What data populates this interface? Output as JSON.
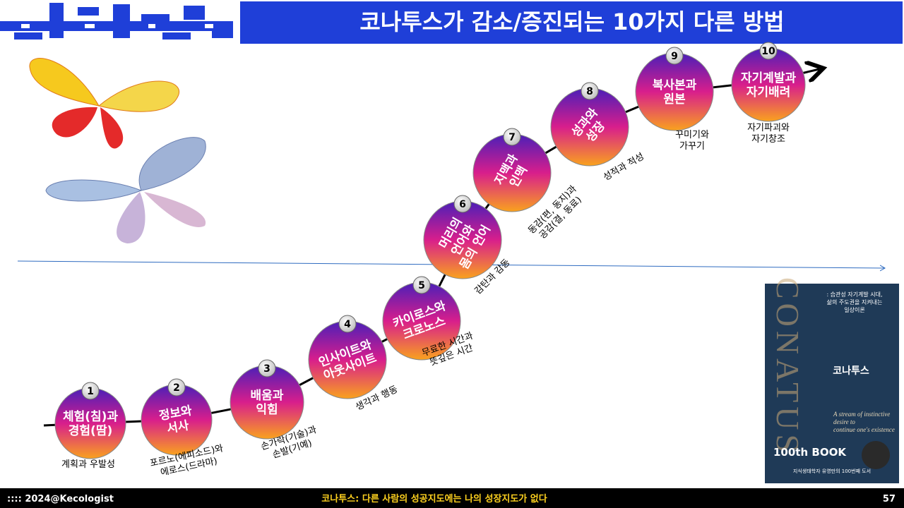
{
  "header": {
    "title": "코나투스가 감소/증진되는 10가지 다른 방법"
  },
  "nodes": [
    {
      "number": "1",
      "label": [
        "체험(침)과",
        "경험(땀)"
      ],
      "caption": [
        "계획과 우발성"
      ]
    },
    {
      "number": "2",
      "label": [
        "정보와",
        "서사"
      ],
      "caption": [
        "포르노(에피소드)와",
        "에로스(드라마)"
      ]
    },
    {
      "number": "3",
      "label": [
        "배움과",
        "익힘"
      ],
      "caption": [
        "손가락(기술)과",
        "손발(기예)"
      ]
    },
    {
      "number": "4",
      "label": [
        "인사이트와",
        "아웃사이트"
      ],
      "caption": [
        "생각과 행동"
      ]
    },
    {
      "number": "5",
      "label": [
        "카이로스와",
        "크로노스"
      ],
      "caption": [
        "무료한 시간과",
        "뜻깊은 시간"
      ]
    },
    {
      "number": "6",
      "label": [
        "머리의",
        "언어와",
        "몸의 언어"
      ],
      "caption": [
        "감탄과 감동"
      ]
    },
    {
      "number": "7",
      "label": [
        "지맥과",
        "인맥"
      ],
      "caption": [
        "동감(편, 동지)과",
        "공감(결, 동료)"
      ]
    },
    {
      "number": "8",
      "label": [
        "성과와",
        "성장"
      ],
      "caption": [
        "성적과 적성"
      ]
    },
    {
      "number": "9",
      "label": [
        "복사본과",
        "원본"
      ],
      "caption": [
        "꾸미기와",
        "가꾸기"
      ]
    },
    {
      "number": "10",
      "label": [
        "자기계발과",
        "자기배려"
      ],
      "caption": [
        "자기파괴와",
        "자기창조"
      ]
    }
  ],
  "book": {
    "tagline": [
      ": 습관성 자기계발 시대,",
      "삶의 주도권을 지켜내는",
      "일상이론"
    ],
    "letters": "CONATUS",
    "title": "코나투스",
    "subtitle": [
      "A stream of instinctive",
      "desire to",
      "continue one's existence"
    ],
    "series": "100th BOOK",
    "note": "지식생태학자 유영만의 100번째 도서"
  },
  "footer": {
    "left": ":::: 2024@Kecologist",
    "center": "코나투스: 다른 사람의 성공지도에는 나의 성장지도가 없다",
    "page": "57"
  }
}
